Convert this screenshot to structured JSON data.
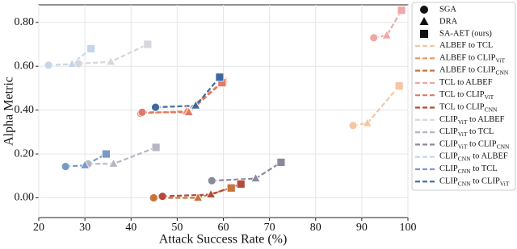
{
  "chart_data": {
    "type": "line",
    "x_label": "Attack Success Rate (%)",
    "y_label": "Alpha Metric",
    "xlim": [
      20,
      100
    ],
    "xticks": [
      20,
      30,
      40,
      50,
      60,
      70,
      80,
      90,
      100
    ],
    "ylim": [
      -0.09,
      0.88
    ],
    "yticks": [
      {
        "value": 0,
        "label": "0.00"
      },
      {
        "value": 0.2,
        "label": "0.20"
      },
      {
        "value": 0.4,
        "label": "0.40"
      },
      {
        "value": 0.6,
        "label": "0.60"
      },
      {
        "value": 0.8,
        "label": "0.80"
      }
    ],
    "grid": true,
    "legend": "outside right",
    "markers": [
      {
        "name": "SGA",
        "shape": "circle"
      },
      {
        "name": "DRA",
        "shape": "triangle"
      },
      {
        "name": "SA-AET (ours)",
        "shape": "square"
      }
    ],
    "series": [
      {
        "name": "ALBEF to TCL",
        "color": "#f6c6a2",
        "x": [
          88.1,
          91.2,
          98.1
        ],
        "values": [
          0.33,
          0.34,
          0.51
        ]
      },
      {
        "name": "ALBEF to CLIPViT",
        "color": "#ef925a",
        "x": [
          42.1,
          52.0,
          59.9
        ],
        "values": [
          0.385,
          0.395,
          0.53
        ]
      },
      {
        "name": "ALBEF to CLIPCNN",
        "color": "#c9733c",
        "x": [
          44.9,
          54.5,
          61.7
        ],
        "values": [
          0.0,
          0.0,
          0.045
        ]
      },
      {
        "name": "TCL to ALBEF",
        "color": "#f0a7a7",
        "x": [
          92.6,
          95.4,
          98.6
        ],
        "values": [
          0.73,
          0.74,
          0.855
        ]
      },
      {
        "name": "TCL to CLIPViT",
        "color": "#e07868",
        "x": [
          42.4,
          52.5,
          59.7
        ],
        "values": [
          0.39,
          0.39,
          0.525
        ]
      },
      {
        "name": "TCL to CLIPCNN",
        "color": "#b34a3c",
        "x": [
          46.8,
          57.3,
          63.8
        ],
        "values": [
          0.007,
          0.015,
          0.063
        ]
      },
      {
        "name": "CLIPViT to ALBEF",
        "color": "#d6d6dc",
        "x": [
          28.6,
          35.6,
          43.6
        ],
        "values": [
          0.612,
          0.62,
          0.7
        ]
      },
      {
        "name": "CLIPViT to TCL",
        "color": "#b6b6c4",
        "x": [
          30.7,
          36.2,
          45.4
        ],
        "values": [
          0.155,
          0.155,
          0.23
        ]
      },
      {
        "name": "CLIPViT to CLIPCNN",
        "color": "#8a8a9e",
        "x": [
          57.5,
          67.0,
          72.5
        ],
        "values": [
          0.078,
          0.088,
          0.162
        ]
      },
      {
        "name": "CLIPCNN to ALBEF",
        "color": "#c6d6ea",
        "x": [
          22.1,
          27.2,
          31.3
        ],
        "values": [
          0.605,
          0.61,
          0.68
        ]
      },
      {
        "name": "CLIPCNN to TCL",
        "color": "#789ac8",
        "x": [
          25.8,
          30.0,
          34.6
        ],
        "values": [
          0.143,
          0.148,
          0.2
        ]
      },
      {
        "name": "CLIPCNN to CLIPViT",
        "color": "#3d699e",
        "x": [
          45.3,
          54.0,
          59.2
        ],
        "values": [
          0.413,
          0.42,
          0.55
        ]
      }
    ]
  }
}
